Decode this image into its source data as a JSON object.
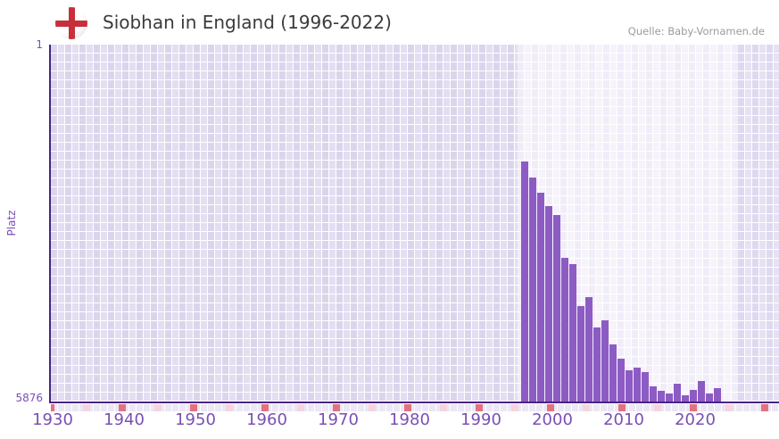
{
  "header": {
    "title": "Siobhan in England (1996-2022)",
    "source": "Quelle: Baby-Vornamen.de",
    "flag_icon": "england-flag-icon"
  },
  "chart_data": {
    "type": "bar",
    "title": "Siobhan in England (1996-2022)",
    "ylabel": "Platz",
    "bar_color": "#8d5bc4",
    "axis_color": "#4a2483",
    "tick_color": "#7a4fb5",
    "y_axis": {
      "top_label": "1",
      "bottom_label": "5876",
      "min": 1,
      "max": 5876,
      "inverted": true
    },
    "x_axis": {
      "tick_labels": [
        "1930",
        "1940",
        "1950",
        "1960",
        "1970",
        "1980",
        "1990",
        "2000",
        "2010",
        "2020"
      ],
      "first_tick_year": 1930,
      "range_years": [
        1927,
        2029
      ]
    },
    "highlight_band_years": [
      1996,
      2022
    ],
    "marker_red_years": [
      1930,
      1940,
      1950,
      1960,
      1970,
      1980,
      1990,
      2000,
      2010,
      2020,
      2030
    ],
    "marker_pink_years": [
      1935,
      1945,
      1955,
      1965,
      1975,
      1985,
      1995,
      2005,
      2015,
      2025
    ],
    "marker_red_color": "#e0737f",
    "marker_pink_color": "#f4d5de",
    "years": [
      1996,
      1997,
      1998,
      1999,
      2000,
      2001,
      2002,
      2003,
      2004,
      2005,
      2006,
      2007,
      2008,
      2009,
      2010,
      2011,
      2012,
      2013,
      2014,
      2015,
      2016,
      2017,
      2018,
      2019,
      2020,
      2021,
      2022
    ],
    "ranks": [
      1915,
      2190,
      2430,
      2655,
      2800,
      3505,
      3605,
      4290,
      4150,
      4650,
      4530,
      4930,
      5160,
      5345,
      5300,
      5375,
      5615,
      5690,
      5725,
      5570,
      5760,
      5670,
      5525,
      5730,
      5640,
      null,
      null
    ]
  }
}
